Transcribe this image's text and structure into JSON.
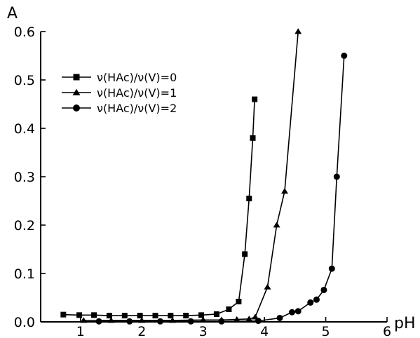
{
  "chart_data": {
    "type": "line",
    "xlabel": "pH",
    "ylabel": "A",
    "xlim": [
      0.35,
      6
    ],
    "ylim": [
      0,
      0.6
    ],
    "xticks": [
      1,
      2,
      3,
      4,
      5,
      6
    ],
    "yticks": [
      0.0,
      0.1,
      0.2,
      0.3,
      0.4,
      0.5,
      0.6
    ],
    "ytick_labels": [
      "0.0",
      "0.1",
      "0.2",
      "0.3",
      "0.4",
      "0.5",
      "0.6"
    ],
    "legend_position": "top-left",
    "series": [
      {
        "name": "ν(HAc)/ν(V)=0",
        "marker": "square",
        "x": [
          0.72,
          0.98,
          1.22,
          1.47,
          1.72,
          1.97,
          2.22,
          2.47,
          2.72,
          2.97,
          3.22,
          3.42,
          3.58,
          3.68,
          3.75,
          3.81,
          3.84
        ],
        "y": [
          0.015,
          0.014,
          0.014,
          0.013,
          0.013,
          0.013,
          0.013,
          0.013,
          0.013,
          0.014,
          0.016,
          0.026,
          0.042,
          0.14,
          0.255,
          0.38,
          0.46
        ]
      },
      {
        "name": "ν(HAc)/ν(V)=1",
        "marker": "triangle",
        "x": [
          1.05,
          1.5,
          2.0,
          2.5,
          3.0,
          3.3,
          3.55,
          3.75,
          3.85,
          4.05,
          4.2,
          4.33,
          4.55
        ],
        "y": [
          0.003,
          0.003,
          0.003,
          0.003,
          0.004,
          0.004,
          0.005,
          0.006,
          0.01,
          0.072,
          0.2,
          0.27,
          0.6
        ]
      },
      {
        "name": "ν(HAc)/ν(V)=2",
        "marker": "circle",
        "x": [
          1.3,
          1.8,
          2.3,
          2.8,
          3.3,
          3.9,
          4.25,
          4.45,
          4.55,
          4.75,
          4.85,
          4.97,
          5.1,
          5.18,
          5.3
        ],
        "y": [
          0.001,
          0.001,
          0.001,
          0.001,
          0.001,
          0.002,
          0.008,
          0.02,
          0.022,
          0.04,
          0.046,
          0.066,
          0.11,
          0.3,
          0.55
        ]
      }
    ]
  }
}
